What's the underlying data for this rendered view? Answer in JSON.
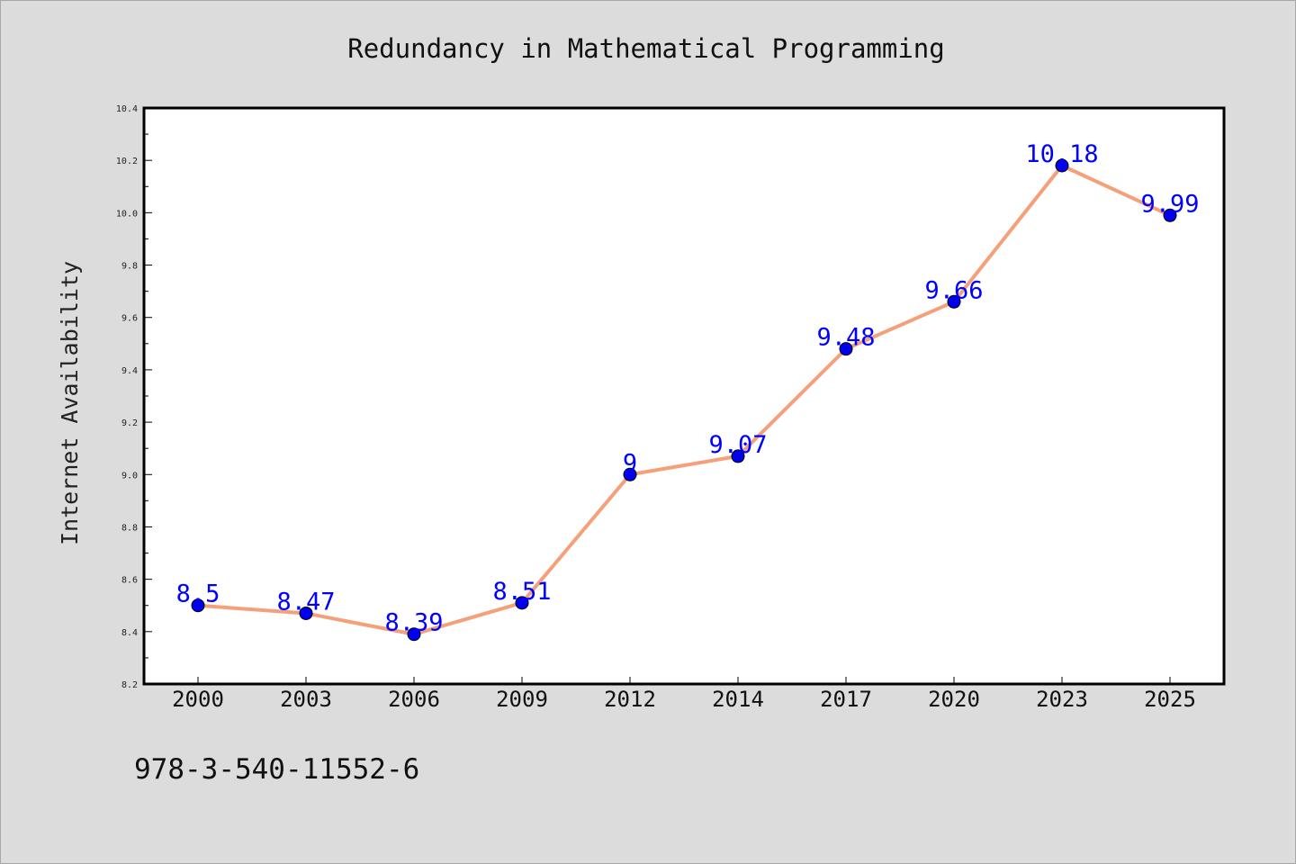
{
  "chart_data": {
    "type": "line",
    "title": "Redundancy in Mathematical Programming",
    "xlabel": "",
    "ylabel": "Internet Availability",
    "categories": [
      "2000",
      "2003",
      "2006",
      "2009",
      "2012",
      "2014",
      "2017",
      "2020",
      "2023",
      "2025"
    ],
    "series": [
      {
        "values": [
          8.5,
          8.47,
          8.39,
          8.51,
          9.0,
          9.07,
          9.48,
          9.66,
          10.18,
          9.99
        ],
        "labels": [
          "8.5",
          "8.47",
          "8.39",
          "8.51",
          "9",
          "9.07",
          "9.48",
          "9.66",
          "10.18",
          "9.99"
        ],
        "line_color": "#f4a07a",
        "marker_color": "#0000ee"
      }
    ],
    "ylim": [
      8.2,
      10.4
    ],
    "yticks": [
      "8.2",
      "8.4",
      "8.6",
      "8.8",
      "9.0",
      "9.2",
      "9.4",
      "9.6",
      "9.8",
      "10.0",
      "10.2",
      "10.4"
    ],
    "grid": false,
    "background_color": "#dcdcdc",
    "plot_background_color": "#ffffff",
    "data_label_color": "#0000ff"
  },
  "footer": {
    "text": "978-3-540-11552-6"
  }
}
